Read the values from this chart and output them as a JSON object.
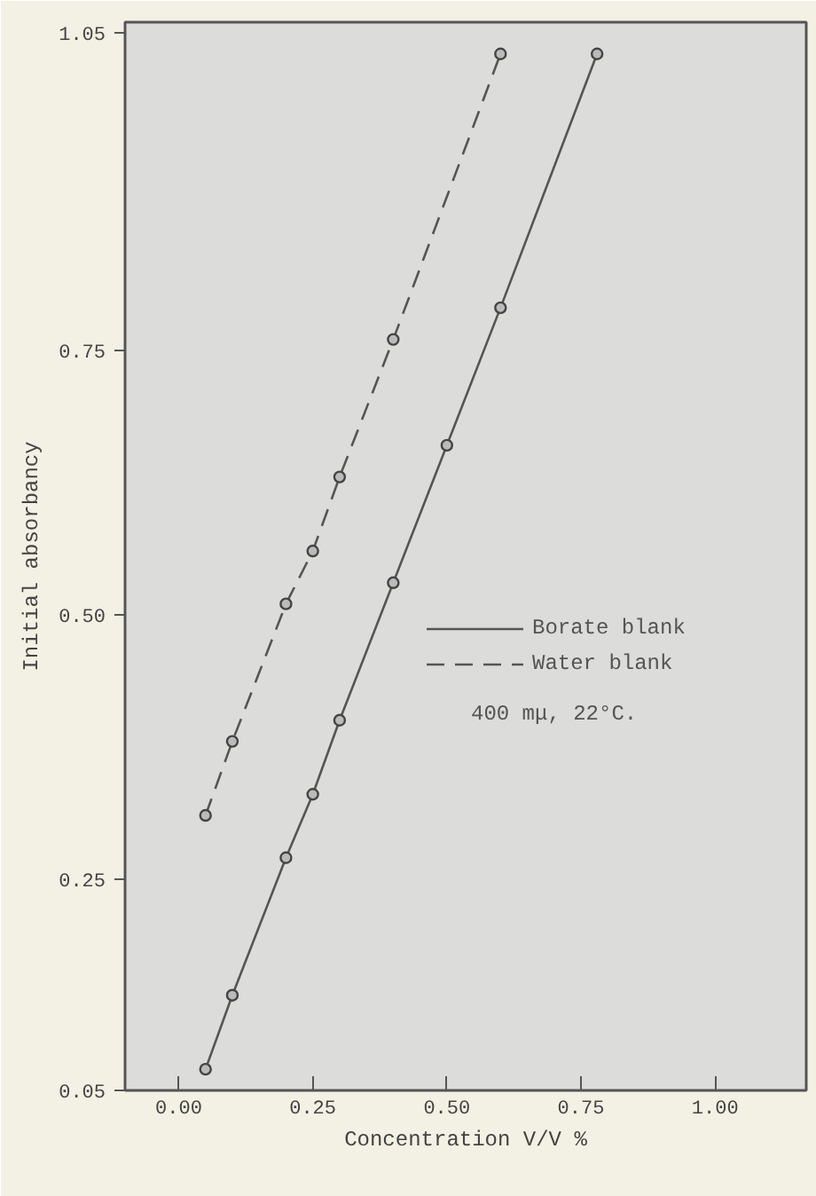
{
  "chart_data": {
    "type": "line",
    "xlabel": "Concentration V/V %",
    "ylabel": "Initial absorbancy",
    "series": [
      {
        "name": "Borate blank",
        "color": "#555555",
        "line_style": "solid",
        "x": [
          0.05,
          0.1,
          0.2,
          0.25,
          0.3,
          0.4,
          0.5,
          0.6,
          0.78
        ],
        "values": [
          0.07,
          0.14,
          0.27,
          0.33,
          0.4,
          0.53,
          0.66,
          0.79,
          1.03
        ]
      },
      {
        "name": "Water blank",
        "color": "#555555",
        "line_style": "dashed",
        "x": [
          0.05,
          0.1,
          0.2,
          0.25,
          0.3,
          0.4,
          0.6
        ],
        "values": [
          0.31,
          0.38,
          0.51,
          0.56,
          0.63,
          0.76,
          1.03
        ]
      }
    ],
    "xlim": [
      -0.1,
      1.17
    ],
    "ylim": [
      0.05,
      1.06
    ],
    "xticks": [
      {
        "value": 0,
        "label": "0.00"
      },
      0.25,
      {
        "value": 0.5,
        "label": "0.50"
      },
      0.75,
      {
        "value": 1,
        "label": "1.00"
      }
    ],
    "yticks": [
      0.05,
      0.25,
      {
        "value": 0.5,
        "label": "0.50"
      },
      0.75,
      1.05
    ],
    "marker": "circle",
    "legend": "right",
    "grid": false,
    "annotations": [
      "400 mμ, 22°C."
    ]
  }
}
